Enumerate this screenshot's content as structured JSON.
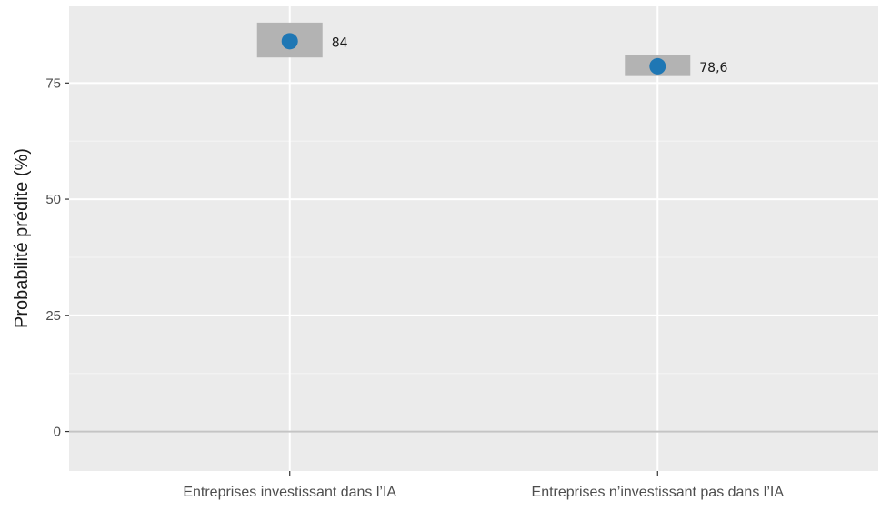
{
  "chart_data": {
    "type": "scatter",
    "title": "",
    "xlabel": "",
    "ylabel": "Probabilité prédite (%)",
    "categories": [
      "Entreprises investissant dans l’IA",
      "Entreprises n’investissant pas dans l’IA"
    ],
    "series": [
      {
        "values": [
          84,
          78.6
        ],
        "ci_low": [
          80.5,
          76.5
        ],
        "ci_high": [
          88,
          81
        ],
        "labels": [
          "84",
          "78,6"
        ]
      }
    ],
    "ylim": [
      -8.5,
      91.5
    ],
    "yticks": [
      0,
      25,
      50,
      75
    ],
    "grid": true,
    "point_color": "#1f77b4",
    "ci_color": "#b3b3b3",
    "panel_color": "#ebebeb",
    "zero_line_color": "#c4c4c4"
  }
}
